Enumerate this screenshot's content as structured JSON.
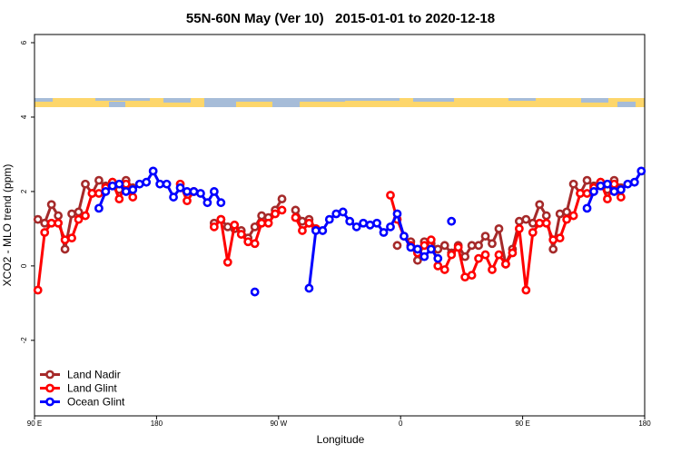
{
  "chart_data": {
    "type": "line",
    "title": "55N-60N May (Ver 10)   2015-01-01 to 2020-12-18",
    "x_label": "Longitude",
    "y_label": "XCO2 - MLO trend (ppm)",
    "xlim": [
      90,
      540
    ],
    "ylim": [
      -4.03,
      6.22
    ],
    "xticks": [
      {
        "value": 90,
        "label": "90 E"
      },
      180,
      {
        "value": 270,
        "label": "90 W"
      },
      {
        "value": 360,
        "label": "0"
      },
      {
        "value": 450,
        "label": "90 E"
      },
      {
        "value": 540,
        "label": "180"
      }
    ],
    "yticks": [
      -2,
      0,
      2,
      4,
      6
    ],
    "legend": "bottom-left",
    "x": [
      92.5,
      97.5,
      102.5,
      107.5,
      112.5,
      117.5,
      122.5,
      127.5,
      132.5,
      137.5,
      142.5,
      147.5,
      152.5,
      157.5,
      162.5,
      167.5,
      172.5,
      177.5,
      182.5,
      187.5,
      192.5,
      197.5,
      202.5,
      207.5,
      212.5,
      217.5,
      222.5,
      227.5,
      232.5,
      237.5,
      242.5,
      247.5,
      252.5,
      257.5,
      262.5,
      267.5,
      272.5,
      277.5,
      282.5,
      287.5,
      292.5,
      297.5,
      302.5,
      307.5,
      312.5,
      317.5,
      322.5,
      327.5,
      332.5,
      337.5,
      342.5,
      347.5,
      352.5,
      357.5,
      362.5,
      367.5,
      372.5,
      377.5,
      382.5,
      387.5,
      392.5,
      397.5,
      402.5,
      407.5,
      412.5,
      417.5,
      422.5,
      427.5,
      432.5,
      437.5,
      442.5,
      447.5,
      452.5,
      457.5,
      462.5,
      467.5,
      472.5,
      477.5,
      482.5,
      487.5,
      492.5,
      497.5,
      502.5,
      507.5,
      512.5,
      517.5,
      522.5,
      527.5,
      532.5,
      537.5
    ],
    "series": [
      {
        "name": "Land Nadir",
        "color": "#a52a2a",
        "values": [
          1.25,
          1.15,
          1.65,
          1.35,
          0.45,
          1.4,
          1.45,
          2.2,
          1.95,
          2.3,
          2.15,
          2.25,
          2.05,
          2.3,
          2.1,
          null,
          null,
          null,
          null,
          null,
          null,
          null,
          null,
          null,
          null,
          null,
          1.15,
          1.25,
          1.05,
          1.0,
          0.95,
          0.75,
          1.05,
          1.35,
          1.3,
          1.5,
          1.8,
          null,
          1.5,
          1.2,
          1.25,
          1.0,
          null,
          null,
          null,
          null,
          null,
          null,
          null,
          null,
          null,
          null,
          null,
          0.55,
          null,
          0.65,
          0.15,
          0.65,
          0.6,
          0.45,
          0.55,
          0.35,
          0.55,
          0.25,
          0.55,
          0.55,
          0.8,
          0.6,
          1.0,
          0.05,
          0.45,
          1.2,
          1.25,
          1.15,
          1.65,
          1.35,
          0.45,
          1.4,
          1.45,
          2.2,
          1.95,
          2.3,
          2.15,
          2.25,
          2.05,
          2.3,
          2.1,
          null,
          null,
          null
        ]
      },
      {
        "name": "Land Glint",
        "color": "#ff0000",
        "values": [
          -0.65,
          0.9,
          1.15,
          1.15,
          0.7,
          0.75,
          1.25,
          1.35,
          1.95,
          1.95,
          2.1,
          2.25,
          1.8,
          2.2,
          1.85,
          null,
          null,
          null,
          null,
          null,
          null,
          2.2,
          1.75,
          2.0,
          null,
          null,
          1.05,
          1.25,
          0.1,
          1.1,
          0.85,
          0.65,
          0.6,
          1.15,
          1.15,
          1.4,
          1.5,
          null,
          1.3,
          0.95,
          1.15,
          1.0,
          null,
          null,
          null,
          null,
          null,
          null,
          null,
          null,
          null,
          null,
          1.9,
          1.25,
          0.8,
          0.55,
          0.35,
          0.55,
          0.7,
          0.0,
          -0.1,
          0.3,
          0.5,
          -0.3,
          -0.25,
          0.2,
          0.3,
          -0.1,
          0.3,
          0.05,
          0.35,
          1.0,
          -0.65,
          0.9,
          1.15,
          1.15,
          0.7,
          0.75,
          1.25,
          1.35,
          1.95,
          1.95,
          2.1,
          2.25,
          1.8,
          2.2,
          1.85,
          null,
          null,
          null
        ]
      },
      {
        "name": "Ocean Glint",
        "color": "#0000ff",
        "values": [
          null,
          null,
          null,
          null,
          null,
          null,
          null,
          null,
          null,
          1.55,
          2.0,
          2.15,
          2.2,
          2.0,
          2.05,
          2.2,
          2.25,
          2.55,
          2.2,
          2.2,
          1.85,
          2.1,
          2.0,
          2.0,
          1.95,
          1.7,
          2.0,
          1.7,
          null,
          null,
          null,
          null,
          -0.7,
          null,
          null,
          null,
          null,
          null,
          null,
          null,
          -0.6,
          0.95,
          0.95,
          1.25,
          1.4,
          1.45,
          1.2,
          1.05,
          1.15,
          1.1,
          1.15,
          0.9,
          1.05,
          1.4,
          0.8,
          0.5,
          0.45,
          0.25,
          0.45,
          0.2,
          null,
          1.2,
          null,
          null,
          null,
          null,
          null,
          null,
          null,
          null,
          null,
          null,
          null,
          null,
          null,
          null,
          null,
          null,
          null,
          null,
          null,
          1.55,
          2.0,
          2.15,
          2.2,
          2.0,
          2.05,
          2.2,
          2.25,
          2.55
        ]
      }
    ]
  }
}
